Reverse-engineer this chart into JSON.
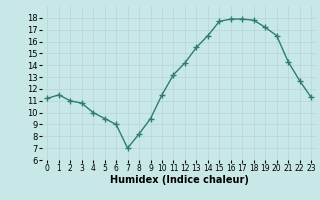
{
  "x": [
    0,
    1,
    2,
    3,
    4,
    5,
    6,
    7,
    8,
    9,
    10,
    11,
    12,
    13,
    14,
    15,
    16,
    17,
    18,
    19,
    20,
    21,
    22,
    23
  ],
  "y": [
    11.2,
    11.5,
    11.0,
    10.8,
    10.0,
    9.5,
    9.0,
    7.0,
    8.2,
    9.5,
    11.5,
    13.2,
    14.2,
    15.5,
    16.5,
    17.7,
    17.9,
    17.9,
    17.8,
    17.2,
    16.5,
    14.3,
    12.7,
    11.3
  ],
  "xlabel": "Humidex (Indice chaleur)",
  "ylim": [
    6,
    19
  ],
  "xlim": [
    -0.5,
    23.5
  ],
  "yticks": [
    6,
    7,
    8,
    9,
    10,
    11,
    12,
    13,
    14,
    15,
    16,
    17,
    18
  ],
  "xticks": [
    0,
    1,
    2,
    3,
    4,
    5,
    6,
    7,
    8,
    9,
    10,
    11,
    12,
    13,
    14,
    15,
    16,
    17,
    18,
    19,
    20,
    21,
    22,
    23
  ],
  "line_color": "#2e7d6e",
  "marker_color": "#2e7d6e",
  "bg_color": "#c8e8e8",
  "grid_color": "#b8d4d4",
  "xlabel_fontsize": 7,
  "tick_fontsize_x": 5.5,
  "tick_fontsize_y": 6
}
